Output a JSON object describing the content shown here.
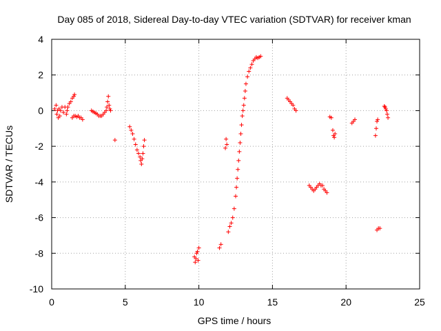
{
  "chart_data": {
    "type": "scatter",
    "title": "Day 085 of 2018, Sidereal Day-to-day VTEC variation (SDTVAR) for receiver kman",
    "xlabel": "GPS time / hours",
    "ylabel": "SDTVAR / TECUs",
    "xlim": [
      0,
      25
    ],
    "ylim": [
      -10,
      4
    ],
    "xticks": [
      0,
      5,
      10,
      15,
      20,
      25
    ],
    "yticks": [
      -10,
      -8,
      -6,
      -4,
      -2,
      0,
      2,
      4
    ],
    "xtick_labels": [
      "0",
      "5",
      "10",
      "15",
      "20",
      "25"
    ],
    "ytick_labels": [
      "-10",
      "-8",
      "-6",
      "-4",
      "-2",
      "0",
      "2",
      "4"
    ],
    "grid": true,
    "marker": "plus",
    "color": "#ff0000",
    "series": [
      {
        "name": "SDTVAR",
        "points": [
          [
            0.2,
            0.1
          ],
          [
            0.3,
            0.3
          ],
          [
            0.35,
            -0.2
          ],
          [
            0.4,
            0.0
          ],
          [
            0.45,
            -0.4
          ],
          [
            0.5,
            0.1
          ],
          [
            0.55,
            -0.3
          ],
          [
            0.6,
            0.0
          ],
          [
            0.7,
            0.2
          ],
          [
            0.8,
            -0.1
          ],
          [
            0.9,
            0.2
          ],
          [
            1.0,
            -0.2
          ],
          [
            1.05,
            0.0
          ],
          [
            1.1,
            0.2
          ],
          [
            1.2,
            0.4
          ],
          [
            1.3,
            0.5
          ],
          [
            1.4,
            0.7
          ],
          [
            1.5,
            0.8
          ],
          [
            1.55,
            0.9
          ],
          [
            1.4,
            -0.4
          ],
          [
            1.5,
            -0.3
          ],
          [
            1.6,
            -0.3
          ],
          [
            1.7,
            -0.35
          ],
          [
            1.8,
            -0.3
          ],
          [
            1.9,
            -0.4
          ],
          [
            2.0,
            -0.4
          ],
          [
            2.1,
            -0.5
          ],
          [
            2.7,
            0.0
          ],
          [
            2.8,
            -0.05
          ],
          [
            2.9,
            -0.1
          ],
          [
            3.0,
            -0.15
          ],
          [
            3.1,
            -0.2
          ],
          [
            3.2,
            -0.3
          ],
          [
            3.3,
            -0.3
          ],
          [
            3.4,
            -0.3
          ],
          [
            3.5,
            -0.2
          ],
          [
            3.6,
            -0.1
          ],
          [
            3.7,
            0.0
          ],
          [
            3.75,
            0.2
          ],
          [
            3.8,
            0.5
          ],
          [
            3.85,
            0.8
          ],
          [
            3.9,
            0.3
          ],
          [
            3.95,
            0.1
          ],
          [
            4.0,
            0.0
          ],
          [
            4.3,
            -1.65
          ],
          [
            5.3,
            -0.9
          ],
          [
            5.4,
            -1.1
          ],
          [
            5.5,
            -1.3
          ],
          [
            5.6,
            -1.6
          ],
          [
            5.7,
            -1.9
          ],
          [
            5.8,
            -2.2
          ],
          [
            5.9,
            -2.4
          ],
          [
            6.0,
            -2.6
          ],
          [
            6.05,
            -2.8
          ],
          [
            6.1,
            -3.0
          ],
          [
            6.15,
            -2.7
          ],
          [
            6.2,
            -2.4
          ],
          [
            6.25,
            -2.0
          ],
          [
            6.3,
            -1.65
          ],
          [
            9.7,
            -8.2
          ],
          [
            9.75,
            -8.5
          ],
          [
            9.8,
            -8.3
          ],
          [
            9.85,
            -8.0
          ],
          [
            9.9,
            -7.9
          ],
          [
            9.95,
            -8.4
          ],
          [
            10.0,
            -7.7
          ],
          [
            11.4,
            -7.7
          ],
          [
            11.5,
            -7.5
          ],
          [
            11.8,
            -2.1
          ],
          [
            11.85,
            -1.6
          ],
          [
            11.9,
            -1.9
          ],
          [
            12.0,
            -6.8
          ],
          [
            12.1,
            -6.5
          ],
          [
            12.2,
            -6.3
          ],
          [
            12.3,
            -6.0
          ],
          [
            12.4,
            -5.5
          ],
          [
            12.5,
            -4.8
          ],
          [
            12.55,
            -4.3
          ],
          [
            12.6,
            -3.8
          ],
          [
            12.65,
            -3.3
          ],
          [
            12.7,
            -2.8
          ],
          [
            12.75,
            -2.3
          ],
          [
            12.8,
            -1.8
          ],
          [
            12.85,
            -1.3
          ],
          [
            12.9,
            -0.8
          ],
          [
            12.95,
            -0.3
          ],
          [
            13.0,
            0.0
          ],
          [
            13.05,
            0.3
          ],
          [
            13.1,
            0.7
          ],
          [
            13.15,
            1.1
          ],
          [
            13.2,
            1.5
          ],
          [
            13.3,
            1.9
          ],
          [
            13.4,
            2.2
          ],
          [
            13.5,
            2.4
          ],
          [
            13.6,
            2.6
          ],
          [
            13.7,
            2.8
          ],
          [
            13.8,
            2.9
          ],
          [
            13.9,
            3.0
          ],
          [
            14.0,
            2.95
          ],
          [
            14.1,
            3.0
          ],
          [
            14.2,
            3.05
          ],
          [
            16.0,
            0.7
          ],
          [
            16.1,
            0.6
          ],
          [
            16.2,
            0.5
          ],
          [
            16.3,
            0.4
          ],
          [
            16.4,
            0.3
          ],
          [
            16.5,
            0.1
          ],
          [
            16.6,
            0.0
          ],
          [
            17.5,
            -4.2
          ],
          [
            17.6,
            -4.3
          ],
          [
            17.7,
            -4.4
          ],
          [
            17.8,
            -4.5
          ],
          [
            17.9,
            -4.4
          ],
          [
            18.0,
            -4.3
          ],
          [
            18.1,
            -4.2
          ],
          [
            18.2,
            -4.1
          ],
          [
            18.3,
            -4.2
          ],
          [
            18.4,
            -4.2
          ],
          [
            18.5,
            -4.4
          ],
          [
            18.6,
            -4.5
          ],
          [
            18.7,
            -4.6
          ],
          [
            18.9,
            -0.35
          ],
          [
            19.0,
            -0.4
          ],
          [
            19.1,
            -1.1
          ],
          [
            19.15,
            -1.4
          ],
          [
            19.2,
            -1.5
          ],
          [
            19.25,
            -1.3
          ],
          [
            20.4,
            -0.7
          ],
          [
            20.5,
            -0.6
          ],
          [
            20.6,
            -0.5
          ],
          [
            22.0,
            -1.4
          ],
          [
            22.05,
            -1.0
          ],
          [
            22.1,
            -0.6
          ],
          [
            22.15,
            -0.5
          ],
          [
            22.1,
            -6.7
          ],
          [
            22.2,
            -6.6
          ],
          [
            22.3,
            -6.6
          ],
          [
            22.6,
            0.25
          ],
          [
            22.65,
            0.2
          ],
          [
            22.7,
            0.1
          ],
          [
            22.75,
            0.0
          ],
          [
            22.8,
            -0.2
          ],
          [
            22.85,
            -0.4
          ]
        ]
      }
    ]
  }
}
